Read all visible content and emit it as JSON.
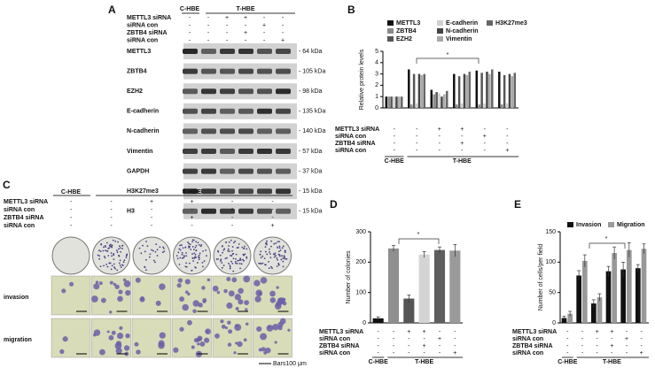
{
  "panel_a": {
    "panel_label": "A",
    "groups": [
      "C-HBE",
      "T-HBE"
    ],
    "conditions": [
      {
        "label": "METTL3 siRNA",
        "signs": [
          "-",
          "-",
          "+",
          "+",
          "-",
          "-"
        ]
      },
      {
        "label": "siRNA con",
        "signs": [
          "-",
          "-",
          "-",
          "-",
          "+",
          "-"
        ]
      },
      {
        "label": "ZBTB4 siRNA",
        "signs": [
          "-",
          "-",
          "-",
          "+",
          "-",
          "-"
        ]
      },
      {
        "label": "siRNA con",
        "signs": [
          "-",
          "-",
          "-",
          "-",
          "-",
          "+"
        ]
      }
    ],
    "blots": [
      {
        "protein": "METTL3",
        "size": "- 64 kDa"
      },
      {
        "protein": "ZBTB4",
        "size": "- 105 kDa"
      },
      {
        "protein": "EZH2",
        "size": "- 98 kDa"
      },
      {
        "protein": "E-cadherin",
        "size": "- 135 kDa"
      },
      {
        "protein": "N-cadherin",
        "size": "- 140 kDa"
      },
      {
        "protein": "Vimentin",
        "size": "- 57 kDa"
      },
      {
        "protein": "GAPDH",
        "size": "- 37 kDa"
      },
      {
        "protein": "H3K27me3",
        "size": "- 15 kDa"
      },
      {
        "protein": "H3",
        "size": "- 15 kDa"
      }
    ]
  },
  "panel_c": {
    "panel_label": "C",
    "groups": [
      "C-HBE",
      "T-HBE"
    ],
    "conditions": [
      {
        "label": "METTL3 siRNA",
        "signs": [
          "-",
          "-",
          "+",
          "+",
          "-",
          "-"
        ]
      },
      {
        "label": "siRNA con",
        "signs": [
          "-",
          "-",
          "-",
          "-",
          "+",
          "-"
        ]
      },
      {
        "label": "ZBTB4 siRNA",
        "signs": [
          "-",
          "-",
          "-",
          "+",
          "-",
          "-"
        ]
      },
      {
        "label": "siRNA  con",
        "signs": [
          "-",
          "-",
          "-",
          "-",
          "-",
          "+"
        ]
      }
    ],
    "rows": [
      "invasion",
      "migration"
    ],
    "scale_bar": "Bars100 μm"
  },
  "chart_data": [
    {
      "type": "bar",
      "panel_label": "B",
      "ylabel": "Relative protein levels",
      "ylim": [
        0,
        5
      ],
      "yticks": [
        0,
        1,
        2,
        3,
        4,
        5
      ],
      "annotation": "*",
      "categories": [
        null,
        null,
        null,
        null,
        null,
        null
      ],
      "series": [
        {
          "name": "METTL3",
          "color": "#111111",
          "values": [
            1,
            3.4,
            1.6,
            3.0,
            3.3,
            3.2
          ]
        },
        {
          "name": "ZBTB4",
          "color": "#8a8a8a",
          "values": [
            1,
            0.3,
            1.2,
            0.3,
            0.3,
            0.3
          ]
        },
        {
          "name": "EZH2",
          "color": "#555555",
          "values": [
            1,
            3.0,
            1.4,
            2.8,
            3.1,
            2.9
          ]
        },
        {
          "name": "E-cadherin",
          "color": "#cfcfcf",
          "values": [
            1,
            0.4,
            1.3,
            0.4,
            0.4,
            0.4
          ]
        },
        {
          "name": "N-cadherin",
          "color": "#444444",
          "values": [
            1,
            3.0,
            1.0,
            3.0,
            3.2,
            3.0
          ]
        },
        {
          "name": "Vimentin",
          "color": "#a8a8a8",
          "values": [
            1,
            2.9,
            1.2,
            2.9,
            3.0,
            2.8
          ]
        },
        {
          "name": "H3K27me3",
          "color": "#666666",
          "values": [
            1,
            3.0,
            1.5,
            3.2,
            3.4,
            3.1
          ]
        }
      ],
      "conditions": [
        {
          "label": "METTL3 siRNA",
          "signs": [
            "-",
            "-",
            "+",
            "+",
            "-",
            "-"
          ]
        },
        {
          "label": "siRNA con",
          "signs": [
            "-",
            "-",
            "-",
            "-",
            "+",
            "-"
          ]
        },
        {
          "label": "ZBTB4 siRNA",
          "signs": [
            "-",
            "-",
            "-",
            "+",
            "-",
            "-"
          ]
        },
        {
          "label": "siRNA con",
          "signs": [
            "-",
            "-",
            "-",
            "-",
            "-",
            "+"
          ]
        }
      ],
      "groups": [
        "C-HBE",
        "T-HBE"
      ]
    },
    {
      "type": "bar",
      "panel_label": "D",
      "ylabel": "Number of colonies",
      "ylim": [
        0,
        300
      ],
      "yticks": [
        0,
        100,
        200,
        300
      ],
      "annotation": "*",
      "categories": [
        null,
        null,
        null,
        null,
        null,
        null
      ],
      "values": [
        15,
        245,
        80,
        225,
        240,
        238
      ],
      "errors": [
        5,
        10,
        12,
        10,
        10,
        20
      ],
      "colors": [
        "#111111",
        "#8f8f8f",
        "#555555",
        "#d4d4d4",
        "#5e5e5e",
        "#9a9a9a"
      ],
      "conditions": [
        {
          "label": "METTL3 siRNA",
          "signs": [
            "-",
            "-",
            "+",
            "+",
            "-",
            "-"
          ]
        },
        {
          "label": "siRNA con",
          "signs": [
            "-",
            "-",
            "-",
            "-",
            "+",
            "-"
          ]
        },
        {
          "label": "ZBTB4 siRNA",
          "signs": [
            "-",
            "-",
            "-",
            "+",
            "-",
            "-"
          ]
        },
        {
          "label": "siRNA con",
          "signs": [
            "-",
            "-",
            "-",
            "-",
            "-",
            "+"
          ]
        }
      ],
      "groups": [
        "C-HBE",
        "T-HBE"
      ]
    },
    {
      "type": "bar",
      "panel_label": "E",
      "ylabel": "Number of cells/per field",
      "ylim": [
        0,
        150
      ],
      "yticks": [
        0,
        50,
        100,
        150
      ],
      "annotation": "*",
      "categories": [
        null,
        null,
        null,
        null,
        null,
        null
      ],
      "series": [
        {
          "name": "Invasion",
          "color": "#111111",
          "values": [
            8,
            78,
            32,
            85,
            88,
            90
          ],
          "errors": [
            3,
            8,
            6,
            8,
            12,
            6
          ]
        },
        {
          "name": "Migration",
          "color": "#999999",
          "values": [
            15,
            102,
            42,
            115,
            120,
            122
          ],
          "errors": [
            4,
            10,
            6,
            10,
            12,
            8
          ]
        }
      ],
      "conditions": [
        {
          "label": "METTL3 siRNA",
          "signs": [
            "-",
            "-",
            "+",
            "+",
            "-",
            "-"
          ]
        },
        {
          "label": "siRNA con",
          "signs": [
            "-",
            "-",
            "-",
            "-",
            "+",
            "-"
          ]
        },
        {
          "label": "ZBTB4 siRNA",
          "signs": [
            "-",
            "-",
            "-",
            "+",
            "-",
            "-"
          ]
        },
        {
          "label": "siRNA con",
          "signs": [
            "-",
            "-",
            "-",
            "-",
            "-",
            "+"
          ]
        }
      ],
      "groups": [
        "C-HBE",
        "T-HBE"
      ]
    }
  ]
}
